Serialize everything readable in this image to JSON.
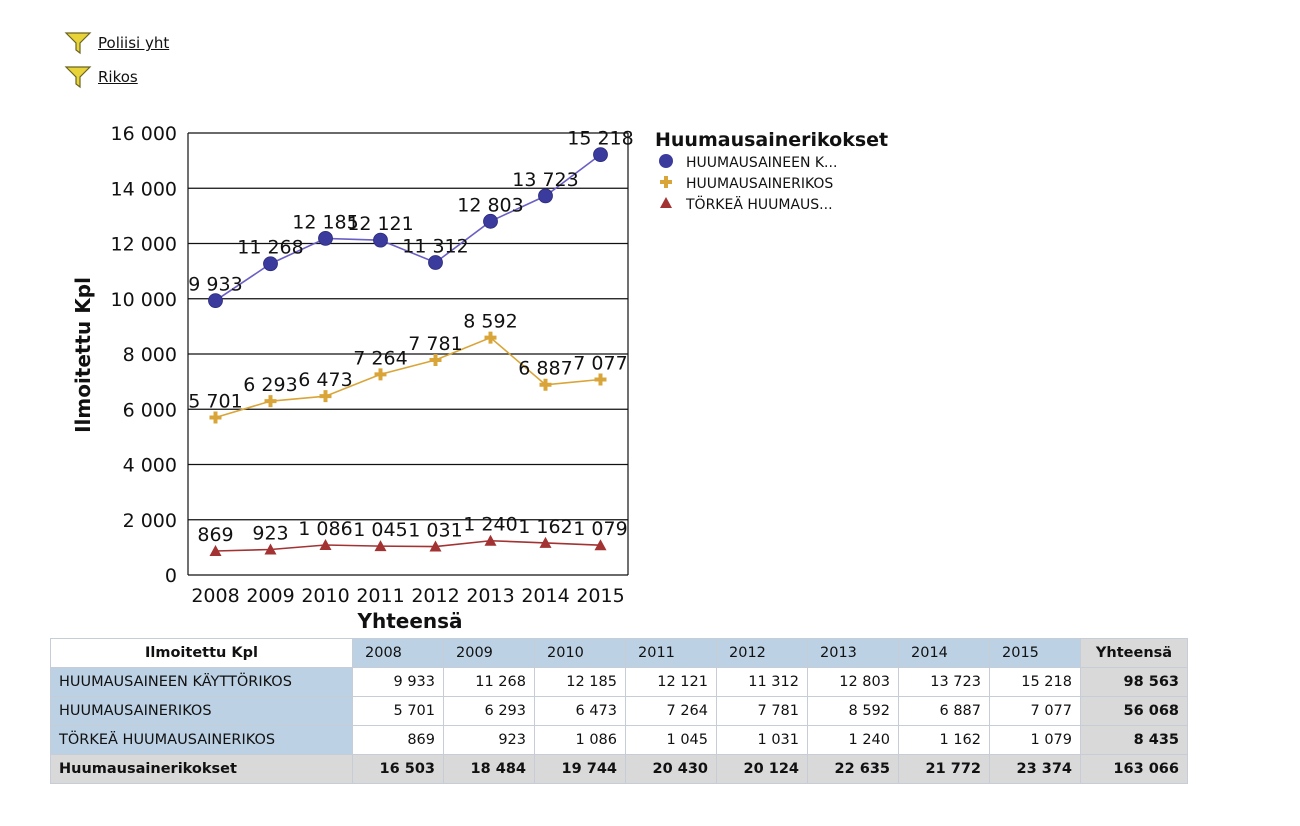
{
  "filters": [
    {
      "label": "Poliisi yht",
      "icon": "funnel-icon"
    },
    {
      "label": "Rikos",
      "icon": "funnel-icon"
    }
  ],
  "chart_data": {
    "type": "line",
    "title": "",
    "xlabel": "Yhteensä",
    "ylabel": "Ilmoitettu Kpl",
    "categories": [
      "2008",
      "2009",
      "2010",
      "2011",
      "2012",
      "2013",
      "2014",
      "2015"
    ],
    "yticks": [
      "0",
      "2 000",
      "4 000",
      "6 000",
      "8 000",
      "10 000",
      "12 000",
      "14 000",
      "16 000"
    ],
    "ylim": [
      0,
      16000
    ],
    "grid": true,
    "legend": {
      "title": "Huumausainerikokset",
      "position": "top-right"
    },
    "series": [
      {
        "name": "HUUMAUSAINEEN K...",
        "values": [
          9933,
          11268,
          12185,
          12121,
          11312,
          12803,
          13723,
          15218
        ],
        "labels": [
          "9 933",
          "11 268",
          "12 185",
          "12 121",
          "11 312",
          "12 803",
          "13 723",
          "15 218"
        ],
        "color": "#3b3b9e",
        "line_color": "#6a5fc4",
        "marker": "circle"
      },
      {
        "name": "HUUMAUSAINERIKOS",
        "values": [
          5701,
          6293,
          6473,
          7264,
          7781,
          8592,
          6887,
          7077
        ],
        "labels": [
          "5 701",
          "6 293",
          "6 473",
          "7 264",
          "7 781",
          "8 592",
          "6 887",
          "7 077"
        ],
        "color": "#d9a538",
        "line_color": "#d9a538",
        "marker": "plus"
      },
      {
        "name": "TÖRKEÄ HUUMAUS...",
        "values": [
          869,
          923,
          1086,
          1045,
          1031,
          1240,
          1162,
          1079
        ],
        "labels": [
          "869",
          "923",
          "1 086",
          "1 045",
          "1 031",
          "1 240",
          "1 162",
          "1 079"
        ],
        "color": "#a33232",
        "line_color": "#a33232",
        "marker": "triangle"
      }
    ]
  },
  "table": {
    "corner": "Ilmoitettu Kpl",
    "years": [
      "2008",
      "2009",
      "2010",
      "2011",
      "2012",
      "2013",
      "2014",
      "2015"
    ],
    "total_header": "Yhteensä",
    "rows": [
      {
        "label": "HUUMAUSAINEEN KÄYTTÖRIKOS",
        "values": [
          "9 933",
          "11 268",
          "12 185",
          "12 121",
          "11 312",
          "12 803",
          "13 723",
          "15 218"
        ],
        "total": "98 563"
      },
      {
        "label": "HUUMAUSAINERIKOS",
        "values": [
          "5 701",
          "6 293",
          "6 473",
          "7 264",
          "7 781",
          "8 592",
          "6 887",
          "7 077"
        ],
        "total": "56 068"
      },
      {
        "label": "TÖRKEÄ HUUMAUSAINERIKOS",
        "values": [
          "869",
          "923",
          "1 086",
          "1 045",
          "1 031",
          "1 240",
          "1 162",
          "1 079"
        ],
        "total": "8 435"
      }
    ],
    "sum_row": {
      "label": "Huumausainerikokset",
      "values": [
        "16 503",
        "18 484",
        "19 744",
        "20 430",
        "20 124",
        "22 635",
        "21 772",
        "23 374"
      ],
      "total": "163 066"
    }
  }
}
